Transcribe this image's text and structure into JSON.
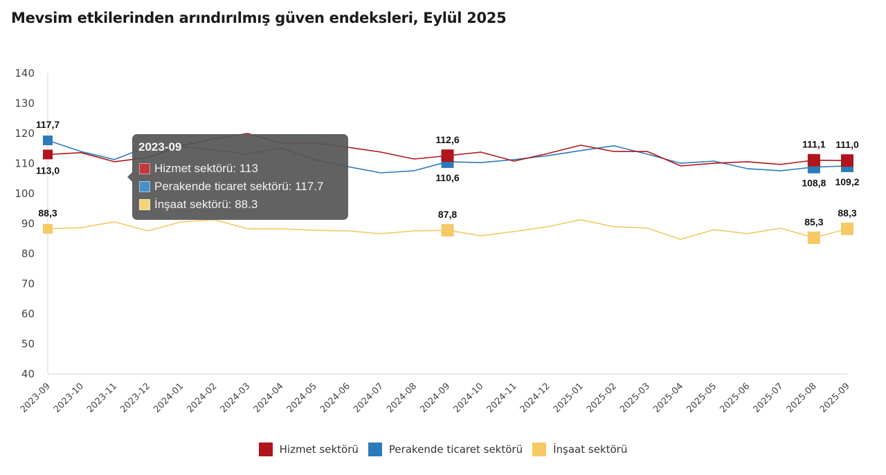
{
  "title": "Mevsim etkilerinden arındırılmış güven endeksleri, Eylül 2025",
  "chart_data": {
    "type": "line",
    "title": "Mevsim etkilerinden arındırılmış güven endeksleri, Eylül 2025",
    "xlabel": "",
    "ylabel": "",
    "ylim": [
      40,
      140
    ],
    "yticks": [
      40,
      50,
      60,
      70,
      80,
      90,
      100,
      110,
      120,
      130,
      140
    ],
    "grid": false,
    "legend_position": "bottom",
    "categories": [
      "2023-09",
      "2023-10",
      "2023-11",
      "2023-12",
      "2024-01",
      "2024-02",
      "2024-03",
      "2024-04",
      "2024-05",
      "2024-06",
      "2024-07",
      "2024-08",
      "2024-09",
      "2024-10",
      "2024-11",
      "2024-12",
      "2025-01",
      "2025-02",
      "2025-03",
      "2025-04",
      "2025-05",
      "2025-06",
      "2025-07",
      "2025-08",
      "2025-09"
    ],
    "series": [
      {
        "name": "Hizmet sektörü",
        "color": "#b0141c",
        "values": [
          113.0,
          113.6,
          110.6,
          112.0,
          115.9,
          118.2,
          120.0,
          116.8,
          116.8,
          115.4,
          113.8,
          111.5,
          112.6,
          113.8,
          110.8,
          113.3,
          116.1,
          114.0,
          114.0,
          109.2,
          110.1,
          110.6,
          109.7,
          111.1,
          111.0
        ],
        "labeled_points": [
          {
            "index": 0,
            "label": "113,0",
            "position": "below"
          },
          {
            "index": 12,
            "label": "112,6",
            "position": "above"
          },
          {
            "index": 23,
            "label": "111,1",
            "position": "above"
          },
          {
            "index": 24,
            "label": "111,0",
            "position": "above"
          }
        ]
      },
      {
        "name": "Perakende ticaret sektörü",
        "color": "#2b7bba",
        "values": [
          117.7,
          114.0,
          111.3,
          115.6,
          115.6,
          114.5,
          113.1,
          115.2,
          111.3,
          109.0,
          106.9,
          107.6,
          110.6,
          110.3,
          111.3,
          112.6,
          114.3,
          115.9,
          113.1,
          110.1,
          110.8,
          108.3,
          107.6,
          108.8,
          109.2
        ],
        "labeled_points": [
          {
            "index": 0,
            "label": "117,7",
            "position": "above"
          },
          {
            "index": 12,
            "label": "110,6",
            "position": "below"
          },
          {
            "index": 23,
            "label": "108,8",
            "position": "below"
          },
          {
            "index": 24,
            "label": "109,2",
            "position": "below"
          }
        ]
      },
      {
        "name": "İnşaat sektörü",
        "color": "#f5c965",
        "values": [
          88.3,
          88.7,
          90.6,
          87.6,
          90.6,
          91.3,
          88.3,
          88.3,
          87.8,
          87.6,
          86.7,
          87.6,
          87.8,
          86.0,
          87.4,
          89.0,
          91.3,
          89.0,
          88.5,
          84.8,
          88.0,
          86.7,
          88.5,
          85.3,
          88.3
        ],
        "labeled_points": [
          {
            "index": 0,
            "label": "88,3",
            "position": "above"
          },
          {
            "index": 12,
            "label": "87,8",
            "position": "above"
          },
          {
            "index": 23,
            "label": "85,3",
            "position": "above"
          },
          {
            "index": 24,
            "label": "88,3",
            "position": "above"
          }
        ]
      }
    ]
  },
  "tooltip": {
    "title": "2023-09",
    "rows": [
      {
        "text": "Hizmet sektörü: 113",
        "color": "#c0393f"
      },
      {
        "text": "Perakende ticaret sektörü: 117.7",
        "color": "#4a90c8"
      },
      {
        "text": "İnşaat sektörü: 88.3",
        "color": "#f5d27a"
      }
    ]
  },
  "legend": [
    {
      "label": "Hizmet sektörü",
      "color": "#b0141c"
    },
    {
      "label": "Perakende ticaret sektörü",
      "color": "#2b7bba"
    },
    {
      "label": "İnşaat sektörü",
      "color": "#f5c965"
    }
  ]
}
